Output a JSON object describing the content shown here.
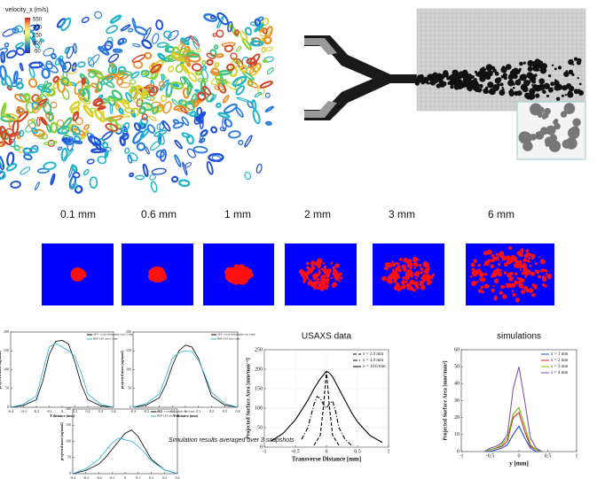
{
  "figure": {
    "colorbar": {
      "title": "velocity_x (m/s)",
      "ticks": [
        550,
        400,
        250,
        100,
        -50
      ]
    },
    "distance_labels": [
      "0.1 mm",
      "0.6 mm",
      "1 mm",
      "2 mm",
      "3 mm",
      "6 mm"
    ],
    "note": "Simulation results averaged over 3 snapshots"
  },
  "chart_data": [
    {
      "type": "line",
      "xlabel": "Y distance (mm)",
      "ylabel": "projected mass (ug/mm2)",
      "x": [
        -0.4,
        -0.3,
        -0.2,
        -0.15,
        -0.1,
        -0.05,
        0,
        0.05,
        0.1,
        0.15,
        0.2,
        0.3,
        0.4
      ],
      "xlim": [
        -0.4,
        0.4
      ],
      "xticks": [
        -0.4,
        -0.3,
        -0.2,
        -0.1,
        0,
        0.1,
        0.2,
        0.3,
        0.4
      ],
      "ylim": [
        0,
        200
      ],
      "yticks": [
        0,
        50,
        100,
        150,
        200
      ],
      "legend": "upper right",
      "series": [
        {
          "name": "APS - x-ray radiography avg 0.1 mm",
          "color": "#000000",
          "linestyle": "solid",
          "values": [
            0,
            5,
            20,
            70,
            140,
            175,
            178,
            168,
            120,
            60,
            20,
            4,
            0
          ]
        },
        {
          "name": "HDF-LES sim 0.1 mm",
          "color": "#2ab0d8",
          "linestyle": "solid",
          "values": [
            0,
            8,
            30,
            95,
            160,
            170,
            160,
            150,
            135,
            90,
            35,
            8,
            0
          ]
        }
      ]
    },
    {
      "type": "line",
      "xlabel": "Y distance (mm)",
      "ylabel": "projected mass (ug/mm2)",
      "x": [
        -0.4,
        -0.3,
        -0.2,
        -0.15,
        -0.1,
        -0.05,
        0,
        0.05,
        0.1,
        0.15,
        0.2,
        0.3,
        0.4
      ],
      "xlim": [
        -0.4,
        0.4
      ],
      "xticks": [
        -0.4,
        -0.3,
        -0.2,
        -0.1,
        0,
        0.1,
        0.2,
        0.3,
        0.4
      ],
      "ylim": [
        0,
        200
      ],
      "yticks": [
        0,
        50,
        100,
        150,
        200
      ],
      "legend": "upper right",
      "series": [
        {
          "name": "APS - x-ray radiography avg 1 mm",
          "color": "#000000",
          "linestyle": "solid",
          "values": [
            0,
            6,
            25,
            60,
            110,
            150,
            165,
            160,
            130,
            80,
            30,
            6,
            0
          ]
        },
        {
          "name": "HDF-LES sim 1 mm",
          "color": "#2ab0d8",
          "linestyle": "solid",
          "values": [
            0,
            10,
            35,
            80,
            130,
            145,
            150,
            148,
            125,
            85,
            40,
            10,
            0
          ]
        }
      ]
    },
    {
      "type": "line",
      "xlabel": "Y distance (mm)",
      "ylabel": "projected mass (ug/mm2)",
      "x": [
        -0.4,
        -0.3,
        -0.2,
        -0.15,
        -0.1,
        -0.05,
        0,
        0.05,
        0.1,
        0.15,
        0.2,
        0.3,
        0.4
      ],
      "xlim": [
        -0.4,
        0.4
      ],
      "xticks": [
        -0.4,
        -0.3,
        -0.2,
        -0.1,
        0,
        0.1,
        0.2,
        0.3,
        0.4
      ],
      "ylim": [
        0,
        200
      ],
      "yticks": [
        0,
        50,
        100,
        150,
        200
      ],
      "legend": "upper right",
      "series": [
        {
          "name": "APS - x-ray radiography avg 4 mm",
          "color": "#000000",
          "linestyle": "solid",
          "values": [
            0,
            10,
            30,
            50,
            75,
            100,
            125,
            135,
            115,
            80,
            45,
            12,
            0
          ]
        },
        {
          "name": "HDF-LES sim 4 mm",
          "color": "#2ab0d8",
          "linestyle": "solid",
          "values": [
            0,
            15,
            45,
            70,
            95,
            110,
            105,
            100,
            85,
            65,
            40,
            12,
            0
          ]
        }
      ]
    },
    {
      "type": "line",
      "title": "USAXS data",
      "xlabel": "Transverse Distance [mm]",
      "ylabel": "Projected Surface Area [mm²mm⁻²]",
      "xlim": [
        -1,
        1
      ],
      "xticks": [
        -1,
        -0.5,
        0,
        0.5,
        1
      ],
      "ylim": [
        0,
        250
      ],
      "yticks": [
        0,
        50,
        100,
        150,
        200,
        250
      ],
      "grid": true,
      "legend": "upper right",
      "series": [
        {
          "name": "x = 2.0 mm",
          "color": "#000000",
          "linestyle": "dashed",
          "x": [
            -0.2,
            -0.1,
            -0.05,
            0,
            0.05,
            0.1,
            0.2
          ],
          "values": [
            5,
            30,
            100,
            195,
            100,
            30,
            5
          ]
        },
        {
          "name": "x = 4.0 mm",
          "color": "#000000",
          "linestyle": "dashdot",
          "x": [
            -0.4,
            -0.3,
            -0.2,
            -0.15,
            -0.1,
            -0.05,
            0,
            0.05,
            0.1,
            0.15,
            0.2,
            0.3,
            0.4
          ],
          "values": [
            20,
            50,
            110,
            130,
            125,
            110,
            100,
            112,
            118,
            90,
            50,
            20,
            5
          ]
        },
        {
          "name": "x = 10.0 mm",
          "color": "#000000",
          "linestyle": "solid",
          "x": [
            -0.9,
            -0.7,
            -0.5,
            -0.4,
            -0.3,
            -0.2,
            -0.1,
            -0.05,
            0,
            0.05,
            0.1,
            0.2,
            0.3,
            0.4,
            0.5,
            0.7,
            0.9
          ],
          "values": [
            15,
            35,
            70,
            95,
            120,
            150,
            175,
            185,
            195,
            190,
            180,
            150,
            120,
            90,
            65,
            30,
            12
          ]
        }
      ]
    },
    {
      "type": "line",
      "title": "simulations",
      "xlabel": "y [mm]",
      "ylabel": "Projected Surface Area [mm²/mm²]",
      "x": [
        -0.6,
        -0.5,
        -0.4,
        -0.3,
        -0.2,
        -0.1,
        0,
        0.1,
        0.2,
        0.3,
        0.4
      ],
      "xlim": [
        -1,
        1
      ],
      "xticks": [
        -1,
        -0.5,
        0,
        0.5,
        1
      ],
      "ylim": [
        0,
        60
      ],
      "yticks": [
        0,
        10,
        20,
        30,
        40,
        50,
        60
      ],
      "legend": "upper right",
      "series": [
        {
          "name": "x = 1 mm",
          "color": "#1f4fd0",
          "linestyle": "solid",
          "values": [
            0,
            0,
            1,
            2,
            4,
            10,
            15,
            8,
            2,
            0,
            0
          ]
        },
        {
          "name": "x = 2 mm",
          "color": "#c0282d",
          "linestyle": "solid",
          "values": [
            0,
            1,
            2,
            3,
            6,
            20,
            23,
            12,
            3,
            1,
            0
          ]
        },
        {
          "name": "x = 3 mm",
          "color": "#7ab800",
          "linestyle": "solid",
          "values": [
            0,
            1,
            2,
            4,
            8,
            22,
            26,
            15,
            4,
            1,
            0
          ]
        },
        {
          "name": "x = 4 mm",
          "color": "#7e57a8",
          "linestyle": "solid",
          "values": [
            0,
            2,
            3,
            5,
            10,
            37,
            50,
            30,
            8,
            2,
            0
          ]
        }
      ]
    }
  ]
}
